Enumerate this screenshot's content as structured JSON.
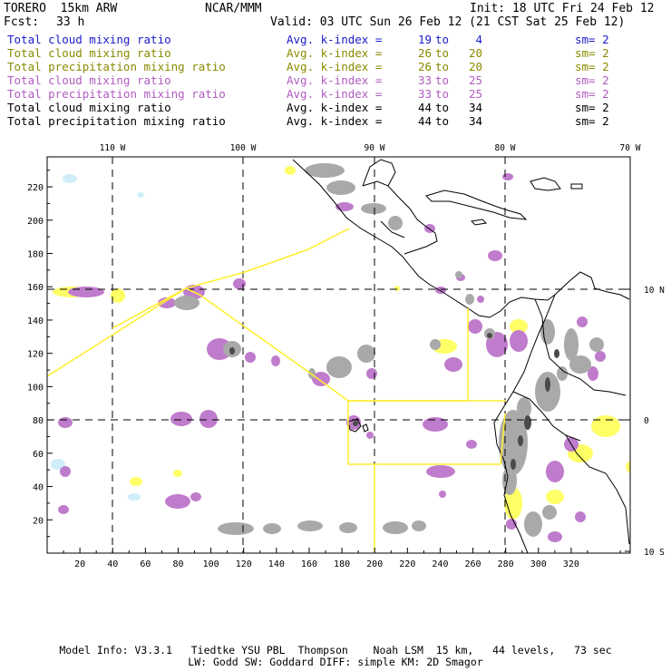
{
  "header": {
    "model": "TORERO  15km ARW",
    "org": "NCAR/MMM",
    "init": "Init: 18 UTC Fri 24 Feb 12",
    "fcst_label": "Fcst:",
    "fcst_value": "33 h",
    "valid": "Valid: 03 UTC Sun 26 Feb 12 (21 CST Sat 25 Feb 12)"
  },
  "legend_rows": [
    {
      "field": "Total cloud mixing ratio",
      "avg": "Avg. k-index =",
      "from": "19",
      "to_word": "to",
      "to": "4",
      "sm": "sm= 2",
      "color": "#1a1acc"
    },
    {
      "field": "Total cloud mixing ratio",
      "avg": "Avg. k-index =",
      "from": "26",
      "to_word": "to",
      "to": "20",
      "sm": "sm= 2",
      "color": "#8a8a00"
    },
    {
      "field": "Total precipitation mixing ratio",
      "avg": "Avg. k-index =",
      "from": "26",
      "to_word": "to",
      "to": "20",
      "sm": "sm= 2",
      "color": "#8a8a00"
    },
    {
      "field": "Total cloud mixing ratio",
      "avg": "Avg. k-index =",
      "from": "33",
      "to_word": "to",
      "to": "25",
      "sm": "sm= 2",
      "color": "#b05cc0"
    },
    {
      "field": "Total precipitation mixing ratio",
      "avg": "Avg. k-index =",
      "from": "33",
      "to_word": "to",
      "to": "25",
      "sm": "sm= 2",
      "color": "#b05cc0"
    },
    {
      "field": "Total cloud mixing ratio",
      "avg": "Avg. k-index =",
      "from": "44",
      "to_word": "to",
      "to": "34",
      "sm": "sm= 2",
      "color": "#000000"
    },
    {
      "field": "Total precipitation mixing ratio",
      "avg": "Avg. k-index =",
      "from": "44",
      "to_word": "to",
      "to": "34",
      "sm": "sm= 2",
      "color": "#000000"
    }
  ],
  "map": {
    "lon_labels": [
      "110 W",
      "100 W",
      "90 W",
      "80 W",
      "70 W"
    ],
    "lat_labels": [
      "10 N",
      "0",
      "10 S"
    ],
    "x_ticks": [
      "20",
      "40",
      "60",
      "80",
      "100",
      "120",
      "140",
      "160",
      "180",
      "200",
      "220",
      "240",
      "260",
      "280",
      "300",
      "320"
    ],
    "y_ticks": [
      "20",
      "40",
      "60",
      "80",
      "100",
      "120",
      "140",
      "160",
      "180",
      "200",
      "220"
    ],
    "colors": {
      "light_blue": "#cfeefa",
      "yellow": "#ffff66",
      "purple": "#c07ccc",
      "gray": "#a9a9a9",
      "dark_gray": "#4a4a4a",
      "domain_line": "#ffee33"
    }
  },
  "footer": {
    "line1": "Model Info: V3.3.1   Tiedtke YSU PBL  Thompson    Noah LSM  15 km,   44 levels,   73 sec",
    "line2": "LW: Godd SW: Goddard DIFF: simple KM: 2D Smagor"
  }
}
